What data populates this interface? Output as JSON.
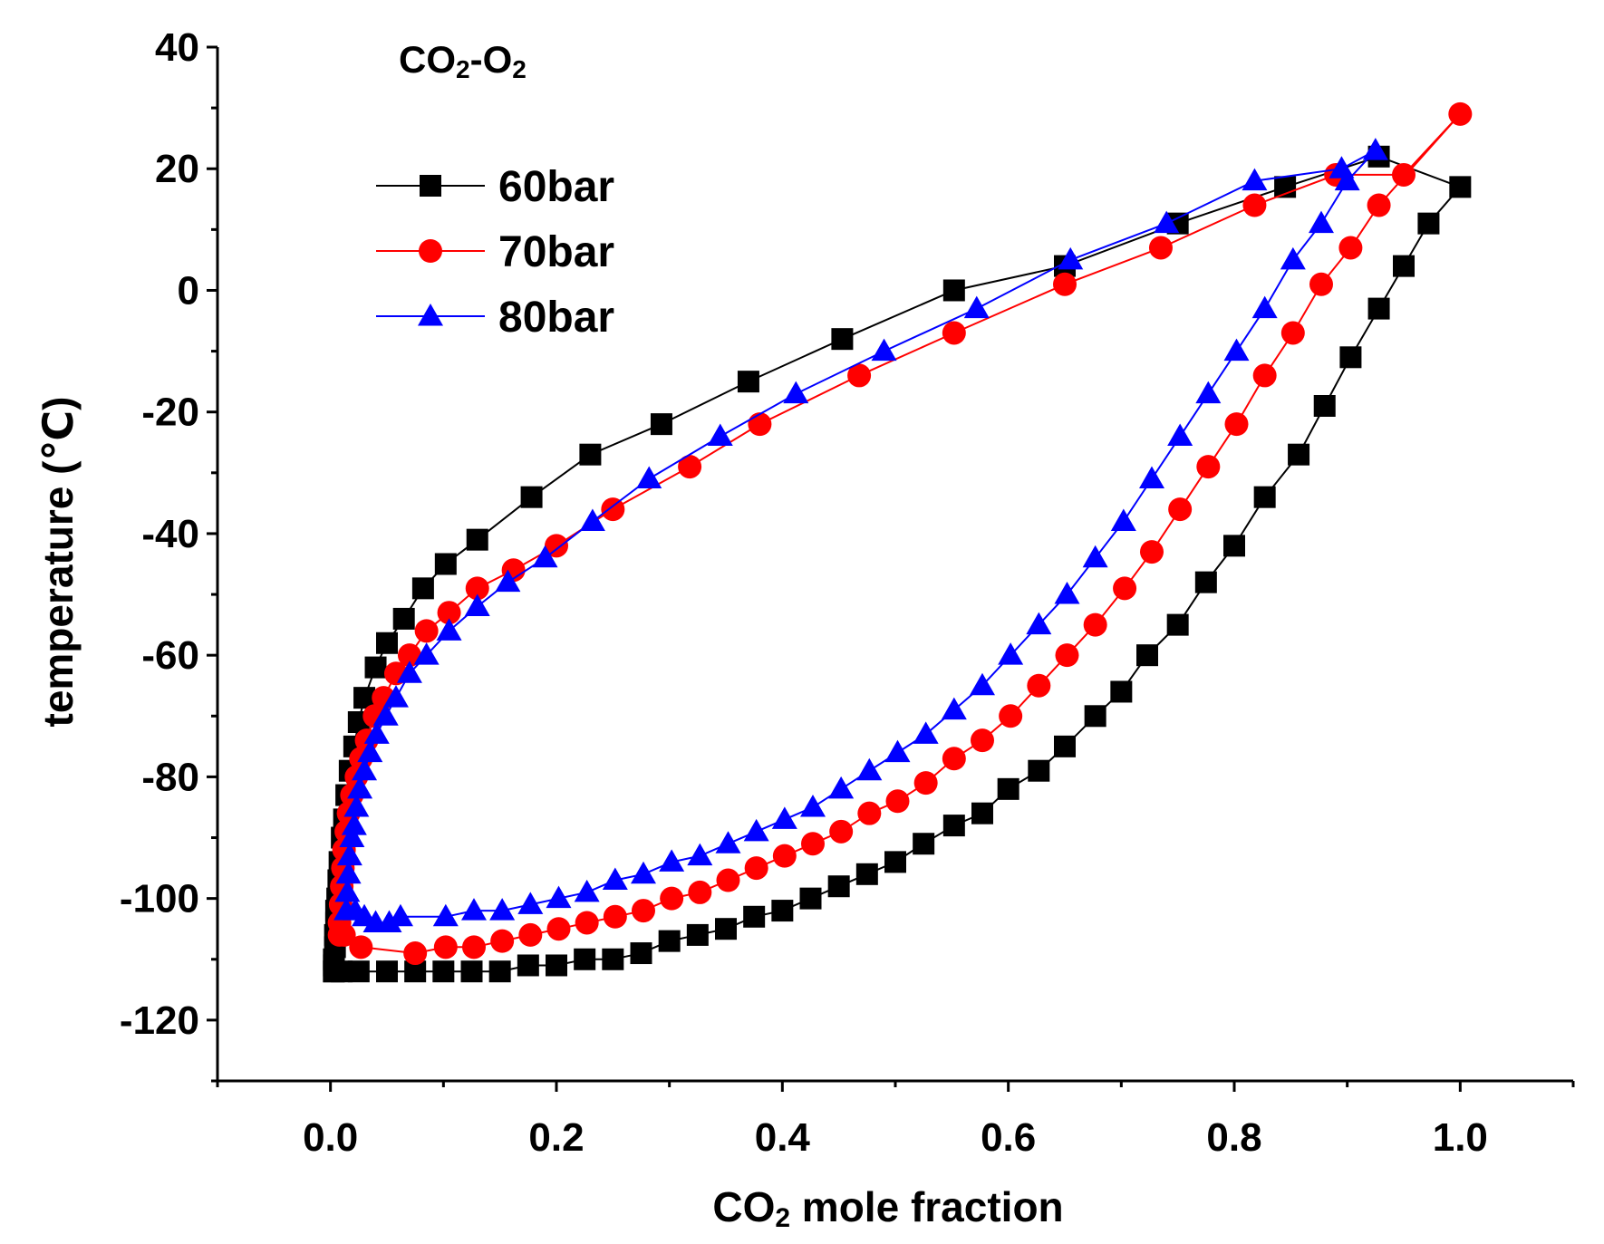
{
  "chart_data": {
    "type": "line",
    "title": "CO2-O2",
    "title_parts": {
      "pre": "CO",
      "sub1": "2",
      "mid": "-O",
      "sub2": "2"
    },
    "xlabel": "CO2 mole fraction",
    "xlabel_parts": {
      "pre": "CO",
      "sub": "2",
      "post": " mole fraction"
    },
    "ylabel": "temperature (℃)",
    "xlim": [
      -0.1,
      1.1
    ],
    "ylim": [
      -130,
      40
    ],
    "x_ticks": [
      0.0,
      0.2,
      0.4,
      0.6,
      0.8,
      1.0
    ],
    "x_tick_labels": [
      "0.0",
      "0.2",
      "0.4",
      "0.6",
      "0.8",
      "1.0"
    ],
    "y_ticks": [
      40,
      20,
      0,
      -20,
      -40,
      -60,
      -80,
      -100,
      -120
    ],
    "y_tick_labels": [
      "40",
      "20",
      "0",
      "-20",
      "-40",
      "-60",
      "-80",
      "-100",
      "-120"
    ],
    "legend_position": "top-left",
    "series": [
      {
        "name": "60bar",
        "color": "#000000",
        "marker": "square",
        "x": [
          0.003,
          0.003,
          0.003,
          0.004,
          0.004,
          0.005,
          0.005,
          0.006,
          0.007,
          0.008,
          0.01,
          0.012,
          0.014,
          0.017,
          0.021,
          0.025,
          0.03,
          0.04,
          0.05,
          0.065,
          0.082,
          0.102,
          0.13,
          0.178,
          0.23,
          0.293,
          0.37,
          0.453,
          0.552,
          0.65,
          0.75,
          0.845,
          0.928,
          1.0,
          0.972,
          0.95,
          0.928,
          0.903,
          0.88,
          0.857,
          0.827,
          0.8,
          0.775,
          0.75,
          0.723,
          0.7,
          0.677,
          0.65,
          0.627,
          0.6,
          0.577,
          0.552,
          0.525,
          0.5,
          0.475,
          0.45,
          0.425,
          0.4,
          0.375,
          0.35,
          0.325,
          0.3,
          0.275,
          0.25,
          0.225,
          0.2,
          0.175,
          0.15,
          0.125,
          0.1,
          0.075,
          0.05,
          0.025,
          0.01,
          0.003
        ],
        "y": [
          -112,
          -111,
          -110,
          -108,
          -106,
          -104,
          -102,
          -100,
          -97,
          -94,
          -90,
          -87,
          -83,
          -79,
          -75,
          -71,
          -67,
          -62,
          -58,
          -54,
          -49,
          -45,
          -41,
          -34,
          -27,
          -22,
          -15,
          -8,
          0,
          4,
          11,
          17,
          22,
          17,
          11,
          4,
          -3,
          -11,
          -19,
          -27,
          -34,
          -42,
          -48,
          -55,
          -60,
          -66,
          -70,
          -75,
          -79,
          -82,
          -86,
          -88,
          -91,
          -94,
          -96,
          -98,
          -100,
          -102,
          -103,
          -105,
          -106,
          -107,
          -109,
          -110,
          -110,
          -111,
          -111,
          -112,
          -112,
          -112,
          -112,
          -112,
          -112,
          -112,
          -112
        ]
      },
      {
        "name": "70bar",
        "color": "#ff0000",
        "marker": "circle",
        "x": [
          0.008,
          0.008,
          0.009,
          0.01,
          0.011,
          0.012,
          0.014,
          0.016,
          0.019,
          0.023,
          0.027,
          0.032,
          0.039,
          0.047,
          0.058,
          0.07,
          0.085,
          0.105,
          0.13,
          0.162,
          0.2,
          0.25,
          0.318,
          0.38,
          0.468,
          0.552,
          0.65,
          0.735,
          0.818,
          0.89,
          0.95,
          1.0,
          0.928,
          0.903,
          0.877,
          0.852,
          0.827,
          0.802,
          0.777,
          0.752,
          0.727,
          0.703,
          0.677,
          0.652,
          0.627,
          0.602,
          0.577,
          0.552,
          0.527,
          0.502,
          0.477,
          0.452,
          0.427,
          0.402,
          0.377,
          0.352,
          0.327,
          0.302,
          0.277,
          0.252,
          0.227,
          0.202,
          0.177,
          0.152,
          0.127,
          0.102,
          0.075,
          0.027,
          0.012
        ],
        "y": [
          -106,
          -104,
          -101,
          -98,
          -95,
          -92,
          -89,
          -86,
          -83,
          -80,
          -77,
          -74,
          -70,
          -67,
          -63,
          -60,
          -56,
          -53,
          -49,
          -46,
          -42,
          -36,
          -29,
          -22,
          -14,
          -7,
          1,
          7,
          14,
          19,
          19,
          29,
          14,
          7,
          1,
          -7,
          -14,
          -22,
          -29,
          -36,
          -43,
          -49,
          -55,
          -60,
          -65,
          -70,
          -74,
          -77,
          -81,
          -84,
          -86,
          -89,
          -91,
          -93,
          -95,
          -97,
          -99,
          -100,
          -102,
          -103,
          -104,
          -105,
          -106,
          -107,
          -108,
          -108,
          -109,
          -108,
          -106
        ]
      },
      {
        "name": "80bar",
        "color": "#0000ff",
        "marker": "triangle",
        "x": [
          0.014,
          0.015,
          0.016,
          0.017,
          0.019,
          0.021,
          0.023,
          0.026,
          0.03,
          0.035,
          0.041,
          0.049,
          0.058,
          0.07,
          0.085,
          0.105,
          0.13,
          0.157,
          0.19,
          0.232,
          0.282,
          0.345,
          0.412,
          0.49,
          0.572,
          0.655,
          0.74,
          0.818,
          0.895,
          0.925,
          0.9,
          0.877,
          0.852,
          0.827,
          0.802,
          0.777,
          0.752,
          0.727,
          0.702,
          0.677,
          0.652,
          0.627,
          0.602,
          0.577,
          0.552,
          0.527,
          0.502,
          0.477,
          0.452,
          0.427,
          0.402,
          0.377,
          0.352,
          0.327,
          0.302,
          0.277,
          0.252,
          0.227,
          0.202,
          0.177,
          0.152,
          0.127,
          0.102,
          0.062,
          0.052,
          0.04,
          0.03,
          0.022
        ],
        "y": [
          -102,
          -99,
          -96,
          -93,
          -90,
          -88,
          -85,
          -82,
          -79,
          -76,
          -73,
          -70,
          -67,
          -63,
          -60,
          -56,
          -52,
          -48,
          -44,
          -38,
          -31,
          -24,
          -17,
          -10,
          -3,
          5,
          11,
          18,
          20,
          23,
          18,
          11,
          5,
          -3,
          -10,
          -17,
          -24,
          -31,
          -38,
          -44,
          -50,
          -55,
          -60,
          -65,
          -69,
          -73,
          -76,
          -79,
          -82,
          -85,
          -87,
          -89,
          -91,
          -93,
          -94,
          -96,
          -97,
          -99,
          -100,
          -101,
          -102,
          -102,
          -103,
          -103,
          -104,
          -104,
          -103,
          -102
        ]
      }
    ]
  }
}
